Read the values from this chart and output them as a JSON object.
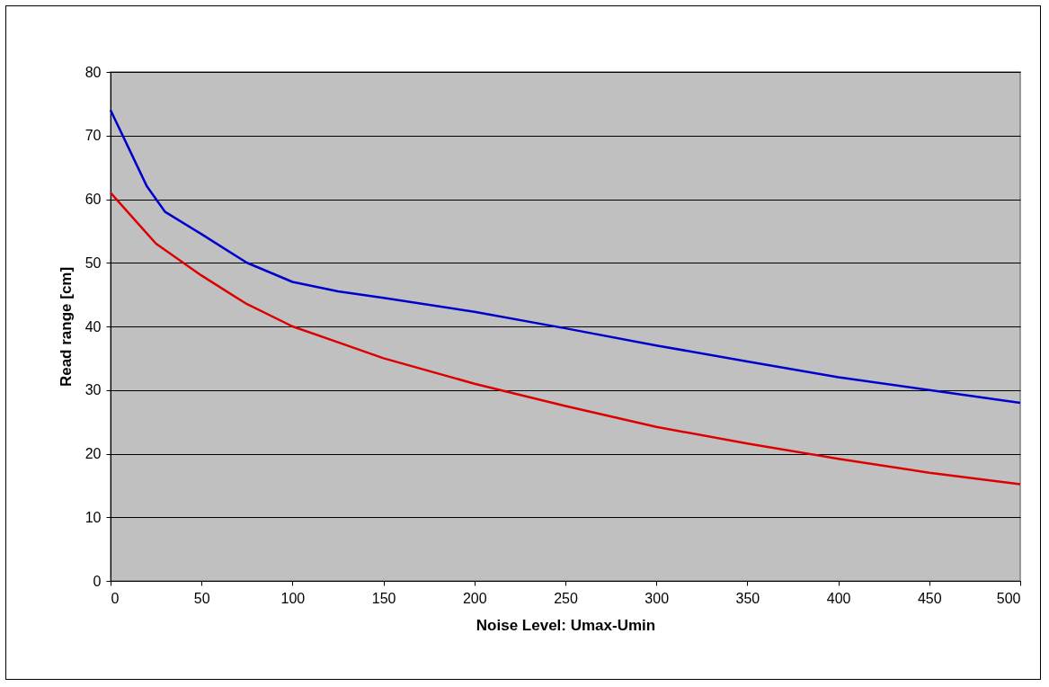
{
  "chart_data": {
    "type": "line",
    "xlabel": "Noise Level: Umax-Umin",
    "ylabel": "Read range [cm]",
    "xlim": [
      0,
      500
    ],
    "xticks": [
      0,
      50,
      100,
      150,
      200,
      250,
      300,
      350,
      400,
      450,
      500
    ],
    "ylim": [
      0,
      80
    ],
    "yticks": [
      0,
      10,
      20,
      30,
      40,
      50,
      60,
      70,
      80
    ],
    "grid": "y",
    "legend": false,
    "marker": "none",
    "line_style": "solid",
    "series": [
      {
        "color": "#0000cc",
        "x": [
          0,
          10,
          20,
          30,
          50,
          75,
          100,
          125,
          150,
          200,
          250,
          300,
          350,
          400,
          450,
          500
        ],
        "values": [
          74,
          68,
          62,
          58,
          54.5,
          50,
          47,
          45.5,
          44.5,
          42.3,
          39.7,
          37,
          34.5,
          32,
          30,
          28
        ]
      },
      {
        "color": "#dd0000",
        "x": [
          0,
          25,
          50,
          75,
          100,
          125,
          150,
          200,
          250,
          300,
          350,
          400,
          450,
          500
        ],
        "values": [
          61,
          53,
          48,
          43.5,
          40,
          37.5,
          35,
          31,
          27.5,
          24.2,
          21.6,
          19.2,
          17,
          15.2
        ]
      }
    ]
  }
}
